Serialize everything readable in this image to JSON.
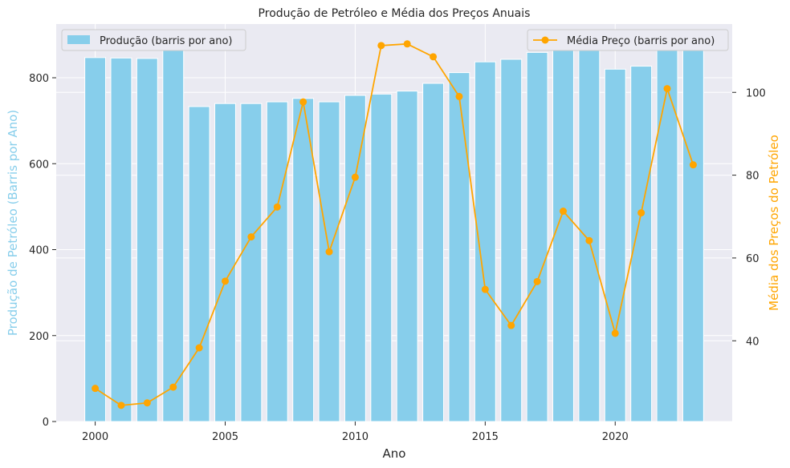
{
  "colors": {
    "plot_background": "#eaeaf2",
    "grid": "#ffffff",
    "bar_fill": "#87ceeb",
    "line": "#ffa500",
    "left_axis_label": "#87ceeb",
    "right_axis_label": "#ffa500",
    "text": "#262626"
  },
  "chart_data": {
    "type": "bar+line",
    "title": "Produção de Petróleo e Média dos Preços Anuais",
    "xlabel": "Ano",
    "ylabel_left": "Produção de Petróleo (Barris por Ano)",
    "ylabel_right": "Média dos Preços do Petróleo",
    "x_ticks": [
      2000,
      2005,
      2010,
      2015,
      2020
    ],
    "y_left_ticks": [
      0,
      200,
      400,
      600,
      800
    ],
    "y_right_ticks": [
      40,
      60,
      80,
      100
    ],
    "y_left_lim": [
      0,
      925
    ],
    "y_right_lim": [
      20.5,
      116.5
    ],
    "x_lim": [
      1998.5,
      2024.5
    ],
    "grid": true,
    "categories": [
      2000,
      2001,
      2002,
      2003,
      2004,
      2005,
      2006,
      2007,
      2008,
      2009,
      2010,
      2011,
      2012,
      2013,
      2014,
      2015,
      2016,
      2017,
      2018,
      2019,
      2020,
      2021,
      2022,
      2023
    ],
    "series": [
      {
        "name": "Produção (barris por ano)",
        "type": "bar",
        "axis": "left",
        "values": [
          847,
          846,
          845,
          867,
          733,
          740,
          740,
          744,
          752,
          744,
          759,
          762,
          769,
          787,
          812,
          837,
          843,
          859,
          875,
          876,
          820,
          827,
          873,
          872
        ]
      },
      {
        "name": "Média Preço (barris por ano)",
        "type": "line",
        "axis": "right",
        "values": [
          28.5,
          24.4,
          25.0,
          28.8,
          38.3,
          54.4,
          65.1,
          72.3,
          97.7,
          61.5,
          79.5,
          111.3,
          111.7,
          108.6,
          99.0,
          52.4,
          43.7,
          54.3,
          71.3,
          64.2,
          41.8,
          70.9,
          100.9,
          82.5
        ]
      }
    ],
    "legend_left_position": "top-left",
    "legend_right_position": "top-right"
  }
}
